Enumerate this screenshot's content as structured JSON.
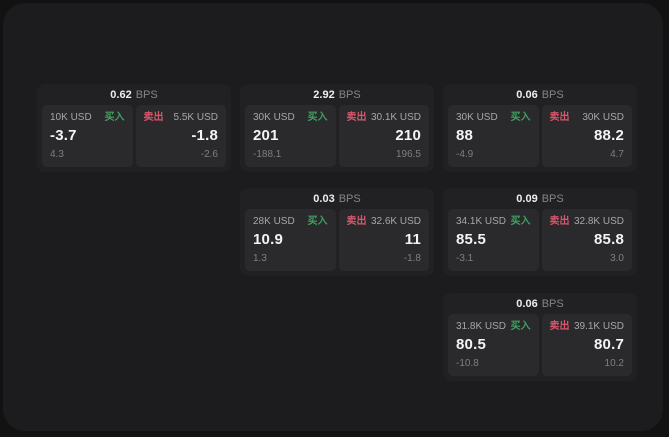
{
  "labels": {
    "bps": "BPS",
    "buy": "买入",
    "sell": "卖出"
  },
  "colors": {
    "page_bg": "#121213",
    "panel_bg": "#1c1c1e",
    "card_bg": "#212124",
    "subpanel_bg": "#2a2a2d",
    "buy_green": "#41a060",
    "sell_red": "#d6566b",
    "value_white": "#f4f4f5",
    "muted_gray": "#7e7e83"
  },
  "cards": [
    {
      "bps": "0.62",
      "row": 0,
      "col": 0,
      "buy": {
        "size": "10K USD",
        "price": "-3.7",
        "delta": "4.3"
      },
      "sell": {
        "size": "5.5K USD",
        "price": "-1.8",
        "delta": "-2.6"
      }
    },
    {
      "bps": "2.92",
      "row": 0,
      "col": 1,
      "buy": {
        "size": "30K USD",
        "price": "201",
        "delta": "-188.1"
      },
      "sell": {
        "size": "30.1K USD",
        "price": "210",
        "delta": "196.5"
      }
    },
    {
      "bps": "0.06",
      "row": 0,
      "col": 2,
      "buy": {
        "size": "30K USD",
        "price": "88",
        "delta": "-4.9"
      },
      "sell": {
        "size": "30K USD",
        "price": "88.2",
        "delta": "4.7"
      }
    },
    {
      "bps": "0.03",
      "row": 1,
      "col": 1,
      "buy": {
        "size": "28K USD",
        "price": "10.9",
        "delta": "1.3"
      },
      "sell": {
        "size": "32.6K USD",
        "price": "11",
        "delta": "-1.8"
      }
    },
    {
      "bps": "0.09",
      "row": 1,
      "col": 2,
      "buy": {
        "size": "34.1K USD",
        "price": "85.5",
        "delta": "-3.1"
      },
      "sell": {
        "size": "32.8K USD",
        "price": "85.8",
        "delta": "3.0"
      }
    },
    {
      "bps": "0.06",
      "row": 2,
      "col": 2,
      "buy": {
        "size": "31.8K USD",
        "price": "80.5",
        "delta": "-10.8"
      },
      "sell": {
        "size": "39.1K USD",
        "price": "80.7",
        "delta": "10.2"
      }
    }
  ]
}
